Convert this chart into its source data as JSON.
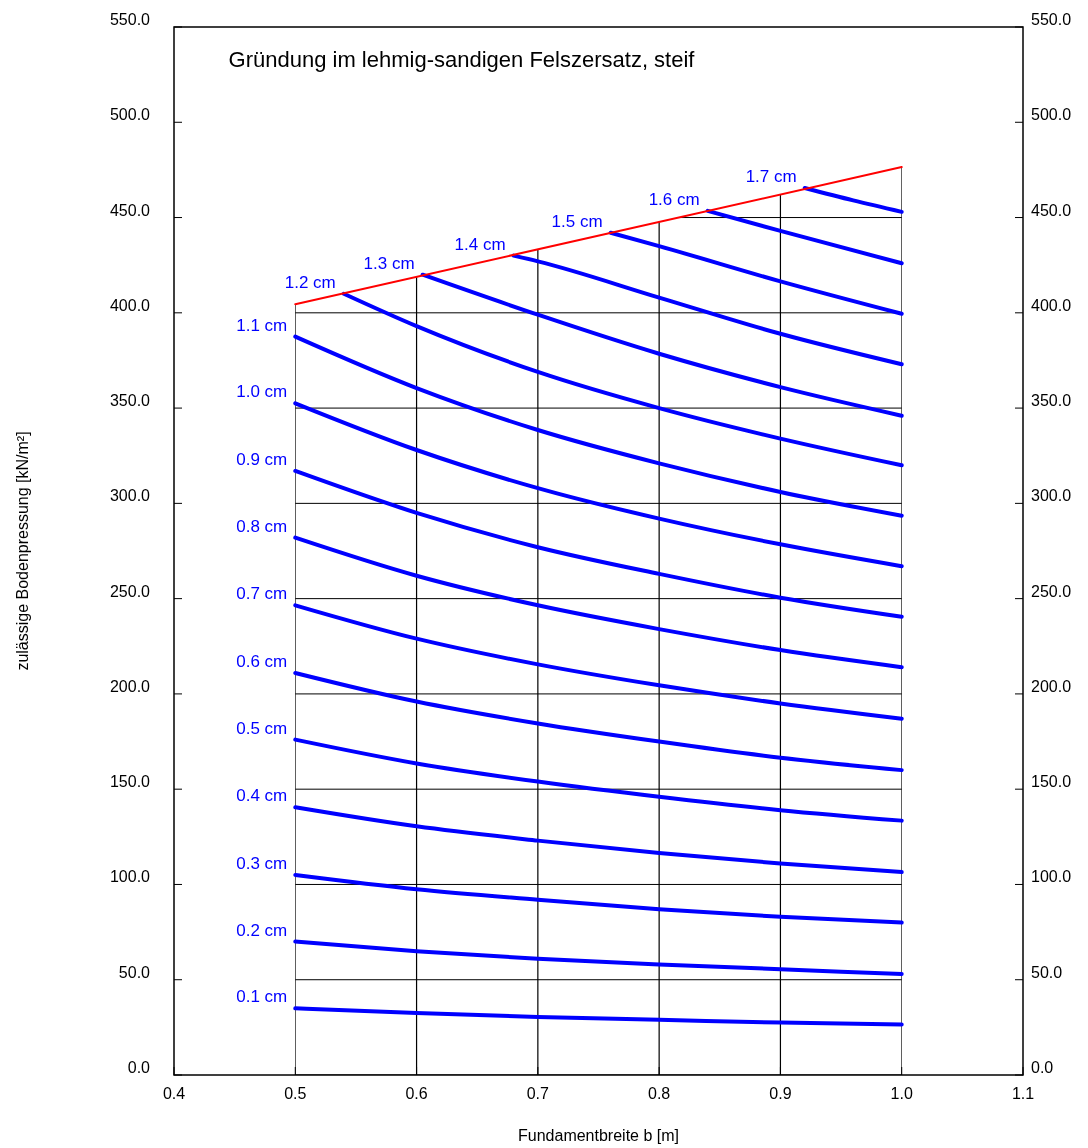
{
  "chart_data": {
    "type": "line",
    "title": "Gründung im lehmig-sandigen Felszersatz, steif",
    "xlabel": "Fundamentbreite b [m]",
    "ylabel": "zulässige Bodenpressung [kN/m²]",
    "xlim": [
      0.4,
      1.1
    ],
    "xticks": [
      0.4,
      0.5,
      0.6,
      0.7,
      0.8,
      0.9,
      {
        "value": 1,
        "label": "1.0"
      },
      1.1
    ],
    "ylim": [
      0,
      550
    ],
    "yticks": [
      {
        "value": 0,
        "label": "0.0"
      },
      {
        "value": 50,
        "label": "50.0"
      },
      {
        "value": 100,
        "label": "100.0"
      },
      {
        "value": 150,
        "label": "150.0"
      },
      {
        "value": 200,
        "label": "200.0"
      },
      {
        "value": 250,
        "label": "250.0"
      },
      {
        "value": 300,
        "label": "300.0"
      },
      {
        "value": 350,
        "label": "350.0"
      },
      {
        "value": 400,
        "label": "400.0"
      },
      {
        "value": 450,
        "label": "450.0"
      },
      {
        "value": 500,
        "label": "500.0"
      },
      {
        "value": 550,
        "label": "550.0"
      }
    ],
    "y2lim": [
      0,
      550
    ],
    "y2ticks": [
      {
        "value": 0,
        "label": "0.0"
      },
      {
        "value": 50,
        "label": "50.0"
      },
      {
        "value": 100,
        "label": "100.0"
      },
      {
        "value": 150,
        "label": "150.0"
      },
      {
        "value": 200,
        "label": "200.0"
      },
      {
        "value": 250,
        "label": "250.0"
      },
      {
        "value": 300,
        "label": "300.0"
      },
      {
        "value": 350,
        "label": "350.0"
      },
      {
        "value": 400,
        "label": "400.0"
      },
      {
        "value": 450,
        "label": "450.0"
      },
      {
        "value": 500,
        "label": "500.0"
      },
      {
        "value": 550,
        "label": "550.0"
      }
    ],
    "grid": true,
    "series": [
      {
        "name": "0.1 cm",
        "color": "#0000ff",
        "x": [
          0.5,
          0.6,
          0.7,
          0.8,
          0.9,
          1.0
        ],
        "values": [
          35,
          32.5,
          30.5,
          29,
          27.5,
          26.5
        ]
      },
      {
        "name": "0.2 cm",
        "color": "#0000ff",
        "x": [
          0.5,
          0.6,
          0.7,
          0.8,
          0.9,
          1.0
        ],
        "values": [
          70,
          65,
          61,
          58,
          55.5,
          53
        ]
      },
      {
        "name": "0.3 cm",
        "color": "#0000ff",
        "x": [
          0.5,
          0.6,
          0.7,
          0.8,
          0.9,
          1.0
        ],
        "values": [
          105,
          97.5,
          92,
          87,
          83,
          80
        ]
      },
      {
        "name": "0.4 cm",
        "color": "#0000ff",
        "x": [
          0.5,
          0.6,
          0.7,
          0.8,
          0.9,
          1.0
        ],
        "values": [
          140.5,
          130.5,
          123,
          116.5,
          111,
          106.5
        ]
      },
      {
        "name": "0.5 cm",
        "color": "#0000ff",
        "x": [
          0.5,
          0.6,
          0.7,
          0.8,
          0.9,
          1.0
        ],
        "values": [
          176,
          163.5,
          154,
          146,
          139,
          133.5
        ]
      },
      {
        "name": "0.6 cm",
        "color": "#0000ff",
        "x": [
          0.5,
          0.6,
          0.7,
          0.8,
          0.9,
          1.0
        ],
        "values": [
          211,
          196,
          184.5,
          175,
          166.5,
          160
        ]
      },
      {
        "name": "0.7 cm",
        "color": "#0000ff",
        "x": [
          0.5,
          0.6,
          0.7,
          0.8,
          0.9,
          1.0
        ],
        "values": [
          246.5,
          229,
          215.5,
          204.5,
          195,
          187
        ]
      },
      {
        "name": "0.8 cm",
        "color": "#0000ff",
        "x": [
          0.5,
          0.6,
          0.7,
          0.8,
          0.9,
          1.0
        ],
        "values": [
          282,
          262,
          246.5,
          234,
          223,
          214
        ]
      },
      {
        "name": "0.9 cm",
        "color": "#0000ff",
        "x": [
          0.5,
          0.6,
          0.7,
          0.8,
          0.9,
          1.0
        ],
        "values": [
          317,
          295,
          277,
          263,
          250.5,
          240.5
        ]
      },
      {
        "name": "1.0 cm",
        "color": "#0000ff",
        "x": [
          0.5,
          0.6,
          0.7,
          0.8,
          0.9,
          1.0
        ],
        "values": [
          352.5,
          328,
          308,
          292,
          278.5,
          267
        ]
      },
      {
        "name": "1.1 cm",
        "color": "#0000ff",
        "x": [
          0.5,
          0.6,
          0.7,
          0.8,
          0.9,
          1.0
        ],
        "values": [
          387.5,
          360.5,
          338.5,
          321,
          306,
          293.5
        ]
      },
      {
        "name": "1.2 cm",
        "color": "#0000ff",
        "x": [
          0.54,
          0.6,
          0.7,
          0.8,
          0.9,
          1.0
        ],
        "values": [
          410,
          393,
          369,
          350,
          334,
          320
        ]
      },
      {
        "name": "1.3 cm",
        "color": "#0000ff",
        "x": [
          0.605,
          0.7,
          0.8,
          0.9,
          1.0
        ],
        "values": [
          420,
          399,
          378.5,
          361,
          346
        ]
      },
      {
        "name": "1.4 cm",
        "color": "#0000ff",
        "x": [
          0.68,
          0.7,
          0.8,
          0.9,
          1.0
        ],
        "values": [
          430,
          427,
          408,
          389,
          373
        ]
      },
      {
        "name": "1.5 cm",
        "color": "#0000ff",
        "x": [
          0.76,
          0.8,
          0.9,
          1.0
        ],
        "values": [
          442,
          435,
          416.5,
          399.5
        ]
      },
      {
        "name": "1.6 cm",
        "color": "#0000ff",
        "x": [
          0.84,
          0.9,
          1.0
        ],
        "values": [
          453.5,
          443,
          426
        ]
      },
      {
        "name": "1.7 cm",
        "color": "#0000ff",
        "x": [
          0.92,
          0.96,
          1.0
        ],
        "values": [
          465.5,
          459,
          453
        ]
      },
      {
        "color": "#ff0000",
        "x": [
          0.5,
          1.0
        ],
        "values": [
          404.5,
          476.5
        ]
      }
    ]
  }
}
